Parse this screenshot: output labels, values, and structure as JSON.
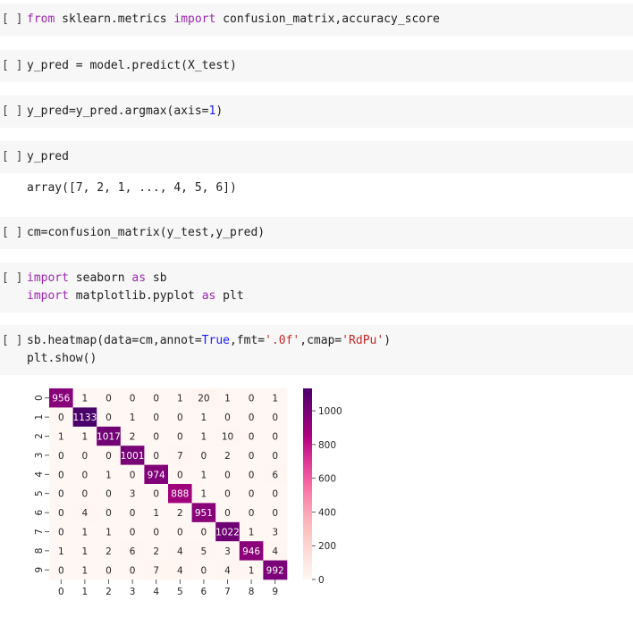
{
  "cells": [
    {
      "bracket": "[ ]",
      "lines": [
        [
          {
            "t": "from",
            "c": "kw"
          },
          {
            "t": " sklearn.metrics "
          },
          {
            "t": "import",
            "c": "kw"
          },
          {
            "t": " confusion_matrix,accuracy_score"
          }
        ]
      ]
    },
    {
      "bracket": "[ ]",
      "lines": [
        [
          {
            "t": "y_pred = model.predict(X_test)"
          }
        ]
      ]
    },
    {
      "bracket": "[ ]",
      "lines": [
        [
          {
            "t": "y_pred=y_pred.argmax(axis="
          },
          {
            "t": "1",
            "c": "bl"
          },
          {
            "t": ")"
          }
        ]
      ]
    },
    {
      "bracket": "[ ]",
      "lines": [
        [
          {
            "t": "y_pred"
          }
        ]
      ]
    },
    {
      "bracket": "[ ]",
      "lines": [
        [
          {
            "t": "cm=confusion_matrix(y_test,y_pred)"
          }
        ]
      ]
    },
    {
      "bracket": "[ ]",
      "lines": [
        [
          {
            "t": "import",
            "c": "kw"
          },
          {
            "t": " seaborn "
          },
          {
            "t": "as",
            "c": "kw"
          },
          {
            "t": " sb"
          }
        ],
        [
          {
            "t": "import",
            "c": "kw"
          },
          {
            "t": " matplotlib.pyplot "
          },
          {
            "t": "as",
            "c": "kw"
          },
          {
            "t": " plt"
          }
        ]
      ]
    },
    {
      "bracket": "[ ]",
      "lines": [
        [
          {
            "t": "sb.heatmap(data=cm,annot="
          },
          {
            "t": "True",
            "c": "bl"
          },
          {
            "t": ",fmt="
          },
          {
            "t": "'.0f'",
            "c": "st"
          },
          {
            "t": ",cmap="
          },
          {
            "t": "'RdPu'",
            "c": "st"
          },
          {
            "t": ")"
          }
        ],
        [
          {
            "t": "plt.show()"
          }
        ]
      ]
    }
  ],
  "output_array": "array([7, 2, 1, ..., 4, 5, 6])",
  "chart_data": {
    "type": "heatmap",
    "colormap": "RdPu",
    "xticklabels": [
      "0",
      "1",
      "2",
      "3",
      "4",
      "5",
      "6",
      "7",
      "8",
      "9"
    ],
    "yticklabels": [
      "0",
      "1",
      "2",
      "3",
      "4",
      "5",
      "6",
      "7",
      "8",
      "9"
    ],
    "values": [
      [
        956,
        1,
        0,
        0,
        0,
        1,
        20,
        1,
        0,
        1
      ],
      [
        0,
        1133,
        0,
        1,
        0,
        0,
        1,
        0,
        0,
        0
      ],
      [
        1,
        1,
        1017,
        2,
        0,
        0,
        1,
        10,
        0,
        0
      ],
      [
        0,
        0,
        0,
        1001,
        0,
        7,
        0,
        2,
        0,
        0
      ],
      [
        0,
        0,
        1,
        0,
        974,
        0,
        1,
        0,
        0,
        6
      ],
      [
        0,
        0,
        0,
        3,
        0,
        888,
        1,
        0,
        0,
        0
      ],
      [
        0,
        4,
        0,
        0,
        1,
        2,
        951,
        0,
        0,
        0
      ],
      [
        0,
        1,
        1,
        0,
        0,
        0,
        0,
        1022,
        1,
        3
      ],
      [
        1,
        1,
        2,
        6,
        2,
        4,
        5,
        3,
        946,
        4
      ],
      [
        0,
        1,
        0,
        0,
        7,
        4,
        0,
        4,
        1,
        992
      ]
    ],
    "vmin": 0,
    "vmax": 1133,
    "colorbar_ticks": [
      "0",
      "200",
      "400",
      "600",
      "800",
      "1000"
    ]
  }
}
